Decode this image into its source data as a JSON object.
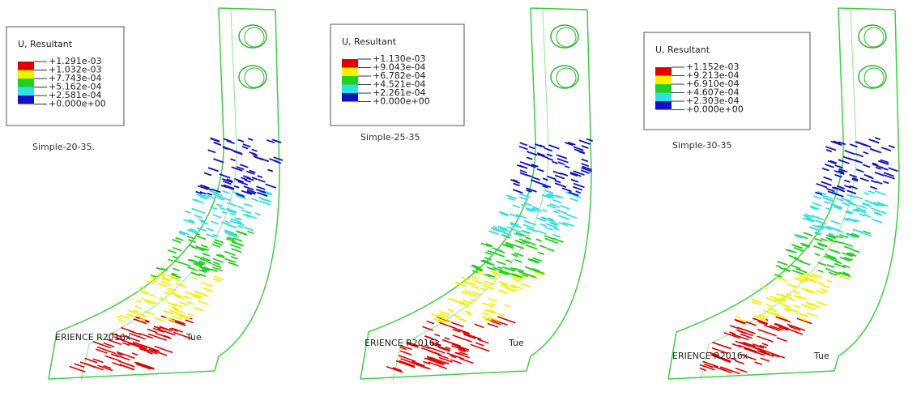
{
  "panels": [
    {
      "legend_title": "U, Resultant",
      "legend_values": [
        "+1.291e-03",
        "+1.032e-03",
        "+7.743e-04",
        "+5.162e-04",
        "+2.581e-04",
        "+0.000e+00"
      ],
      "caption": "Simple-20-35.",
      "watermark": "ERIENCE R2016x",
      "watermark_day": "Tue"
    },
    {
      "legend_title": "U, Resultant",
      "legend_values": [
        "+1.130e-03",
        "+9.043e-04",
        "+6.782e-04",
        "+4.521e-04",
        "+2.261e-04",
        "+0.000e+00"
      ],
      "caption": "Simple-25-35",
      "watermark": "ERIENCE R2016x",
      "watermark_day": "Tue"
    },
    {
      "legend_title": "U, Resultant",
      "legend_values": [
        "+1.152e-03",
        "+9.213e-04",
        "+6.910e-04",
        "+4.607e-04",
        "+2.303e-04",
        "+0.000e+00"
      ],
      "caption": "Simple-30-35",
      "watermark": "ERIENCE R2016x",
      "watermark_day": "Tue"
    }
  ]
}
